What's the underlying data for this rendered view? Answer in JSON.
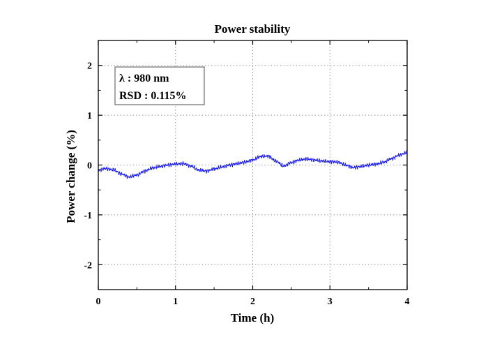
{
  "chart_data": {
    "type": "line",
    "title": "Power stability",
    "xlabel": "Time (h)",
    "ylabel": "Power change (%)",
    "xlim": [
      0,
      4
    ],
    "ylim": [
      -2.5,
      2.5
    ],
    "x_ticks": [
      0,
      1,
      2,
      3,
      4
    ],
    "y_ticks": [
      -2,
      -1,
      0,
      1,
      2
    ],
    "grid": true,
    "annotation": {
      "lines": [
        "λ : 980 nm",
        "RSD : 0.115%"
      ]
    },
    "series": [
      {
        "color": "#1a1aff",
        "x": [
          0,
          0.1,
          0.2,
          0.3,
          0.4,
          0.5,
          0.6,
          0.7,
          0.8,
          0.9,
          1.0,
          1.1,
          1.2,
          1.3,
          1.4,
          1.5,
          1.6,
          1.7,
          1.8,
          1.9,
          2.0,
          2.1,
          2.2,
          2.3,
          2.4,
          2.5,
          2.6,
          2.7,
          2.8,
          2.9,
          3.0,
          3.1,
          3.2,
          3.3,
          3.4,
          3.5,
          3.6,
          3.7,
          3.8,
          3.9,
          4.0
        ],
        "y": [
          -0.1,
          -0.07,
          -0.1,
          -0.18,
          -0.24,
          -0.2,
          -0.12,
          -0.06,
          -0.03,
          0.0,
          0.02,
          0.03,
          -0.02,
          -0.1,
          -0.12,
          -0.08,
          -0.04,
          0.0,
          0.03,
          0.06,
          0.1,
          0.17,
          0.18,
          0.08,
          -0.02,
          0.05,
          0.1,
          0.12,
          0.1,
          0.08,
          0.07,
          0.06,
          0.0,
          -0.05,
          -0.03,
          0.0,
          0.02,
          0.06,
          0.13,
          0.2,
          0.25
        ]
      }
    ]
  }
}
